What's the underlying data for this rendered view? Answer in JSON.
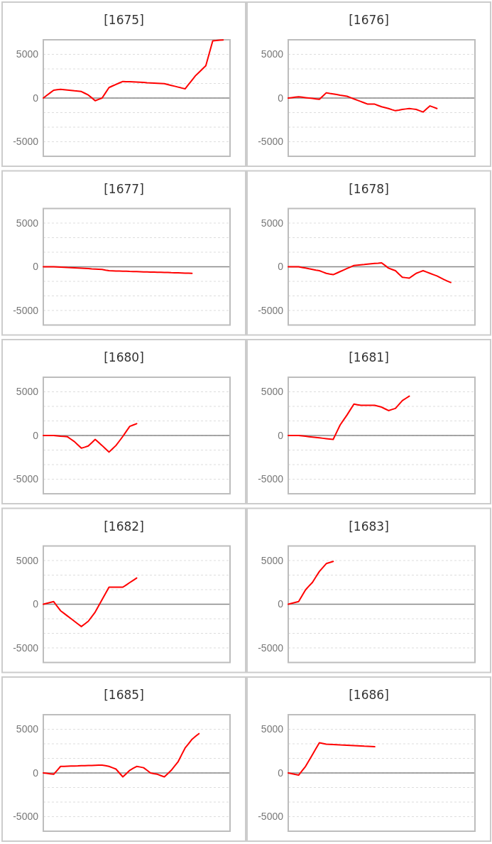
{
  "chart_data": [
    {
      "type": "line",
      "title": "[1675]",
      "categories": [
        null,
        null,
        null,
        null,
        null,
        null,
        null,
        null,
        null,
        null,
        null,
        null,
        null,
        null,
        null,
        null,
        null,
        null,
        null,
        null,
        null,
        null,
        null,
        null,
        null,
        null,
        null,
        null,
        null,
        null,
        null,
        null,
        null,
        null,
        null,
        null,
        null,
        null,
        null,
        null,
        null,
        null,
        null,
        null,
        null,
        null,
        null,
        null,
        null,
        null,
        null,
        null,
        null,
        null,
        null
      ],
      "values": [
        0,
        300,
        600,
        900,
        950,
        1000,
        960,
        920,
        880,
        830,
        790,
        750,
        550,
        350,
        30,
        -300,
        -150,
        0,
        600,
        1200,
        1380,
        1550,
        1730,
        1900,
        1880,
        1860,
        1840,
        1820,
        1800,
        1780,
        1750,
        1730,
        1710,
        1690,
        1670,
        1650,
        1550,
        1450,
        1350,
        1250,
        1150,
        1050,
        1550,
        2050,
        2550,
        2930,
        3320,
        3700,
        5130,
        6550,
        6580,
        6620,
        6650,
        null,
        null
      ],
      "color": "#ff0000",
      "ylim": [
        -6667,
        6667
      ],
      "yticks": [
        -5000,
        {
          "value": -3333,
          "label": null
        },
        {
          "value": -1667,
          "label": null
        },
        0,
        {
          "value": 1667,
          "label": null
        },
        {
          "value": 3333,
          "label": null
        },
        5000
      ],
      "grid": "y",
      "tick_labels": "y"
    },
    {
      "type": "line",
      "title": "[1676]",
      "categories": [
        null,
        null,
        null,
        null,
        null,
        null,
        null,
        null,
        null,
        null,
        null,
        null,
        null,
        null,
        null,
        null,
        null,
        null,
        null,
        null,
        null,
        null,
        null,
        null,
        null,
        null,
        null,
        null,
        null,
        null,
        null,
        null,
        null,
        null,
        null,
        null,
        null,
        null,
        null,
        null,
        null,
        null,
        null,
        null,
        null,
        null,
        null,
        null,
        null,
        null,
        null,
        null,
        null,
        null,
        null
      ],
      "values": [
        0,
        50,
        100,
        150,
        100,
        50,
        0,
        -50,
        -100,
        -150,
        230,
        600,
        530,
        470,
        400,
        330,
        270,
        200,
        50,
        -100,
        -250,
        -400,
        -550,
        -700,
        -700,
        -700,
        -850,
        -1000,
        -1100,
        -1200,
        -1330,
        -1450,
        -1380,
        -1300,
        -1250,
        -1200,
        -1250,
        -1300,
        -1450,
        -1600,
        -1250,
        -900,
        -1050,
        -1200,
        null,
        null,
        null,
        null,
        null,
        null,
        null,
        null,
        null,
        null,
        null
      ],
      "color": "#ff0000",
      "ylim": [
        -6667,
        6667
      ],
      "yticks": [
        -5000,
        {
          "value": -3333,
          "label": null
        },
        {
          "value": -1667,
          "label": null
        },
        0,
        {
          "value": 1667,
          "label": null
        },
        {
          "value": 3333,
          "label": null
        },
        5000
      ],
      "grid": "y",
      "tick_labels": "y"
    },
    {
      "type": "line",
      "title": "[1677]",
      "categories": [
        null,
        null,
        null,
        null,
        null,
        null,
        null,
        null,
        null,
        null,
        null,
        null,
        null,
        null,
        null,
        null,
        null,
        null,
        null,
        null,
        null,
        null,
        null,
        null,
        null,
        null,
        null,
        null,
        null,
        null,
        null,
        null,
        null,
        null,
        null,
        null,
        null,
        null,
        null,
        null,
        null,
        null,
        null,
        null,
        null,
        null,
        null,
        null,
        null,
        null,
        null,
        null,
        null,
        null,
        null
      ],
      "values": [
        0,
        0,
        0,
        0,
        -20,
        -40,
        -60,
        -90,
        -110,
        -130,
        -150,
        -170,
        -190,
        -210,
        -240,
        -260,
        -280,
        -300,
        -380,
        -450,
        -460,
        -480,
        -490,
        -500,
        -510,
        -530,
        -540,
        -550,
        -560,
        -580,
        -590,
        -600,
        -610,
        -630,
        -640,
        -650,
        -660,
        -680,
        -690,
        -700,
        -710,
        -730,
        -740,
        -750,
        null,
        null,
        null,
        null,
        null,
        null,
        null,
        null,
        null,
        null,
        null
      ],
      "color": "#ff0000",
      "ylim": [
        -6667,
        6667
      ],
      "yticks": [
        -5000,
        {
          "value": -3333,
          "label": null
        },
        {
          "value": -1667,
          "label": null
        },
        0,
        {
          "value": 1667,
          "label": null
        },
        {
          "value": 3333,
          "label": null
        },
        5000
      ],
      "grid": "y",
      "tick_labels": "y"
    },
    {
      "type": "line",
      "title": "[1678]",
      "categories": [
        null,
        null,
        null,
        null,
        null,
        null,
        null,
        null,
        null,
        null,
        null,
        null,
        null,
        null,
        null,
        null,
        null,
        null,
        null,
        null,
        null,
        null,
        null,
        null,
        null,
        null,
        null,
        null,
        null,
        null,
        null,
        null,
        null,
        null,
        null,
        null,
        null,
        null,
        null,
        null,
        null,
        null,
        null,
        null,
        null,
        null,
        null,
        null,
        null,
        null,
        null,
        null,
        null,
        null,
        null
      ],
      "values": [
        0,
        0,
        0,
        0,
        -80,
        -150,
        -230,
        -300,
        -380,
        -450,
        -600,
        -750,
        -830,
        -900,
        -730,
        -550,
        -380,
        -200,
        -30,
        150,
        190,
        230,
        260,
        300,
        340,
        380,
        410,
        450,
        150,
        -150,
        -300,
        -450,
        -830,
        -1200,
        -1250,
        -1300,
        -1030,
        -750,
        -600,
        -450,
        -600,
        -750,
        -900,
        -1050,
        -1250,
        -1450,
        -1630,
        -1800,
        null,
        null,
        null,
        null,
        null,
        null,
        null
      ],
      "color": "#ff0000",
      "ylim": [
        -6667,
        6667
      ],
      "yticks": [
        -5000,
        {
          "value": -3333,
          "label": null
        },
        {
          "value": -1667,
          "label": null
        },
        0,
        {
          "value": 1667,
          "label": null
        },
        {
          "value": 3333,
          "label": null
        },
        5000
      ],
      "grid": "y",
      "tick_labels": "y"
    },
    {
      "type": "line",
      "title": "[1680]",
      "categories": [
        null,
        null,
        null,
        null,
        null,
        null,
        null,
        null,
        null,
        null,
        null,
        null,
        null,
        null,
        null,
        null,
        null,
        null,
        null,
        null,
        null,
        null,
        null,
        null,
        null,
        null,
        null,
        null,
        null,
        null,
        null,
        null,
        null,
        null,
        null,
        null,
        null,
        null,
        null,
        null,
        null,
        null,
        null,
        null,
        null,
        null,
        null,
        null,
        null,
        null,
        null,
        null,
        null,
        null,
        null
      ],
      "values": [
        0,
        0,
        0,
        0,
        -40,
        -80,
        -110,
        -150,
        -430,
        -700,
        -1080,
        -1450,
        -1330,
        -1200,
        -830,
        -450,
        -800,
        -1150,
        -1530,
        -1900,
        -1530,
        -1150,
        -630,
        -100,
        480,
        1050,
        1200,
        1350,
        null,
        null,
        null,
        null,
        null,
        null,
        null,
        null,
        null,
        null,
        null,
        null,
        null,
        null,
        null,
        null,
        null,
        null,
        null,
        null,
        null,
        null,
        null,
        null,
        null,
        null,
        null
      ],
      "color": "#ff0000",
      "ylim": [
        -6667,
        6667
      ],
      "yticks": [
        -5000,
        {
          "value": -3333,
          "label": null
        },
        {
          "value": -1667,
          "label": null
        },
        0,
        {
          "value": 1667,
          "label": null
        },
        {
          "value": 3333,
          "label": null
        },
        5000
      ],
      "grid": "y",
      "tick_labels": "y"
    },
    {
      "type": "line",
      "title": "[1681]",
      "categories": [
        null,
        null,
        null,
        null,
        null,
        null,
        null,
        null,
        null,
        null,
        null,
        null,
        null,
        null,
        null,
        null,
        null,
        null,
        null,
        null,
        null,
        null,
        null,
        null,
        null,
        null,
        null,
        null,
        null,
        null,
        null,
        null,
        null,
        null,
        null,
        null,
        null,
        null,
        null,
        null,
        null,
        null,
        null,
        null,
        null,
        null,
        null,
        null,
        null,
        null,
        null,
        null,
        null,
        null,
        null
      ],
      "values": [
        0,
        0,
        0,
        0,
        -45,
        -90,
        -135,
        -180,
        -225,
        -270,
        -315,
        -360,
        -405,
        -450,
        375,
        1200,
        1775,
        2350,
        2975,
        3600,
        3525,
        3450,
        3450,
        3450,
        3450,
        3450,
        3350,
        3250,
        3050,
        2850,
        2975,
        3100,
        3550,
        4000,
        4250,
        4500,
        null,
        null,
        null,
        null,
        null,
        null,
        null,
        null,
        null,
        null,
        null,
        null,
        null,
        null,
        null,
        null,
        null,
        null,
        null
      ],
      "color": "#ff0000",
      "ylim": [
        -6667,
        6667
      ],
      "yticks": [
        -5000,
        {
          "value": -3333,
          "label": null
        },
        {
          "value": -1667,
          "label": null
        },
        0,
        {
          "value": 1667,
          "label": null
        },
        {
          "value": 3333,
          "label": null
        },
        5000
      ],
      "grid": "y",
      "tick_labels": "y"
    },
    {
      "type": "line",
      "title": "[1682]",
      "categories": [
        null,
        null,
        null,
        null,
        null,
        null,
        null,
        null,
        null,
        null,
        null,
        null,
        null,
        null,
        null,
        null,
        null,
        null,
        null,
        null,
        null,
        null,
        null,
        null,
        null,
        null,
        null,
        null,
        null,
        null,
        null,
        null,
        null,
        null,
        null,
        null,
        null,
        null,
        null,
        null,
        null,
        null,
        null,
        null,
        null,
        null,
        null,
        null,
        null,
        null,
        null,
        null,
        null,
        null,
        null
      ],
      "values": [
        0,
        100,
        200,
        300,
        -230,
        -750,
        -1050,
        -1350,
        -1650,
        -1950,
        -2250,
        -2550,
        -2250,
        -1950,
        -1430,
        -900,
        -190,
        530,
        1240,
        1950,
        1950,
        1950,
        1950,
        1950,
        2210,
        2480,
        2740,
        3000,
        null,
        null,
        null,
        null,
        null,
        null,
        null,
        null,
        null,
        null,
        null,
        null,
        null,
        null,
        null,
        null,
        null,
        null,
        null,
        null,
        null,
        null,
        null,
        null,
        null,
        null,
        null
      ],
      "color": "#ff0000",
      "ylim": [
        -6667,
        6667
      ],
      "yticks": [
        -5000,
        {
          "value": -3333,
          "label": null
        },
        {
          "value": -1667,
          "label": null
        },
        0,
        {
          "value": 1667,
          "label": null
        },
        {
          "value": 3333,
          "label": null
        },
        5000
      ],
      "grid": "y",
      "tick_labels": "y"
    },
    {
      "type": "line",
      "title": "[1683]",
      "categories": [
        null,
        null,
        null,
        null,
        null,
        null,
        null,
        null,
        null,
        null,
        null,
        null,
        null,
        null,
        null,
        null,
        null,
        null,
        null,
        null,
        null,
        null,
        null,
        null,
        null,
        null,
        null,
        null,
        null,
        null,
        null,
        null,
        null,
        null,
        null,
        null,
        null,
        null,
        null,
        null,
        null,
        null,
        null,
        null,
        null,
        null,
        null,
        null,
        null,
        null,
        null,
        null,
        null,
        null,
        null
      ],
      "values": [
        0,
        100,
        200,
        300,
        980,
        1650,
        2080,
        2500,
        3130,
        3750,
        4200,
        4650,
        4780,
        4900,
        null,
        null,
        null,
        null,
        null,
        null,
        null,
        null,
        null,
        null,
        null,
        null,
        null,
        null,
        null,
        null,
        null,
        null,
        null,
        null,
        null,
        null,
        null,
        null,
        null,
        null,
        null,
        null,
        null,
        null,
        null,
        null,
        null,
        null,
        null,
        null,
        null,
        null,
        null,
        null,
        null
      ],
      "color": "#ff0000",
      "ylim": [
        -6667,
        6667
      ],
      "yticks": [
        -5000,
        {
          "value": -3333,
          "label": null
        },
        {
          "value": -1667,
          "label": null
        },
        0,
        {
          "value": 1667,
          "label": null
        },
        {
          "value": 3333,
          "label": null
        },
        5000
      ],
      "grid": "y",
      "tick_labels": "y"
    },
    {
      "type": "line",
      "title": "[1685]",
      "categories": [
        null,
        null,
        null,
        null,
        null,
        null,
        null,
        null,
        null,
        null,
        null,
        null,
        null,
        null,
        null,
        null,
        null,
        null,
        null,
        null,
        null,
        null,
        null,
        null,
        null,
        null,
        null,
        null,
        null,
        null,
        null,
        null,
        null,
        null,
        null,
        null,
        null,
        null,
        null,
        null,
        null,
        null,
        null,
        null,
        null,
        null,
        null,
        null,
        null,
        null,
        null,
        null,
        null,
        null,
        null
      ],
      "values": [
        0,
        -50,
        -100,
        -150,
        300,
        750,
        760,
        780,
        790,
        800,
        810,
        830,
        840,
        850,
        860,
        880,
        890,
        900,
        830,
        750,
        600,
        450,
        0,
        -450,
        -80,
        300,
        530,
        750,
        680,
        600,
        300,
        0,
        -80,
        -150,
        -300,
        -450,
        -80,
        300,
        800,
        1300,
        2080,
        2850,
        3350,
        3850,
        4180,
        4500,
        null,
        null,
        null,
        null,
        null,
        null,
        null,
        null,
        null
      ],
      "color": "#ff0000",
      "ylim": [
        -6667,
        6667
      ],
      "yticks": [
        -5000,
        {
          "value": -3333,
          "label": null
        },
        {
          "value": -1667,
          "label": null
        },
        0,
        {
          "value": 1667,
          "label": null
        },
        {
          "value": 3333,
          "label": null
        },
        5000
      ],
      "grid": "y",
      "tick_labels": "y"
    },
    {
      "type": "line",
      "title": "[1686]",
      "categories": [
        null,
        null,
        null,
        null,
        null,
        null,
        null,
        null,
        null,
        null,
        null,
        null,
        null,
        null,
        null,
        null,
        null,
        null,
        null,
        null,
        null,
        null,
        null,
        null,
        null,
        null,
        null,
        null,
        null,
        null,
        null,
        null,
        null,
        null,
        null,
        null,
        null,
        null,
        null,
        null,
        null,
        null,
        null,
        null,
        null,
        null,
        null,
        null,
        null,
        null,
        null,
        null,
        null,
        null,
        null
      ],
      "values": [
        0,
        -80,
        -170,
        -250,
        250,
        750,
        1430,
        2100,
        2780,
        3450,
        3380,
        3300,
        3280,
        3260,
        3240,
        3210,
        3190,
        3170,
        3150,
        3130,
        3110,
        3090,
        3060,
        3040,
        3020,
        3000,
        null,
        null,
        null,
        null,
        null,
        null,
        null,
        null,
        null,
        null,
        null,
        null,
        null,
        null,
        null,
        null,
        null,
        null,
        null,
        null,
        null,
        null,
        null,
        null,
        null,
        null,
        null,
        null,
        null
      ],
      "color": "#ff0000",
      "ylim": [
        -6667,
        6667
      ],
      "yticks": [
        -5000,
        {
          "value": -3333,
          "label": null
        },
        {
          "value": -1667,
          "label": null
        },
        0,
        {
          "value": 1667,
          "label": null
        },
        {
          "value": 3333,
          "label": null
        },
        5000
      ],
      "grid": "y",
      "tick_labels": "y"
    }
  ]
}
